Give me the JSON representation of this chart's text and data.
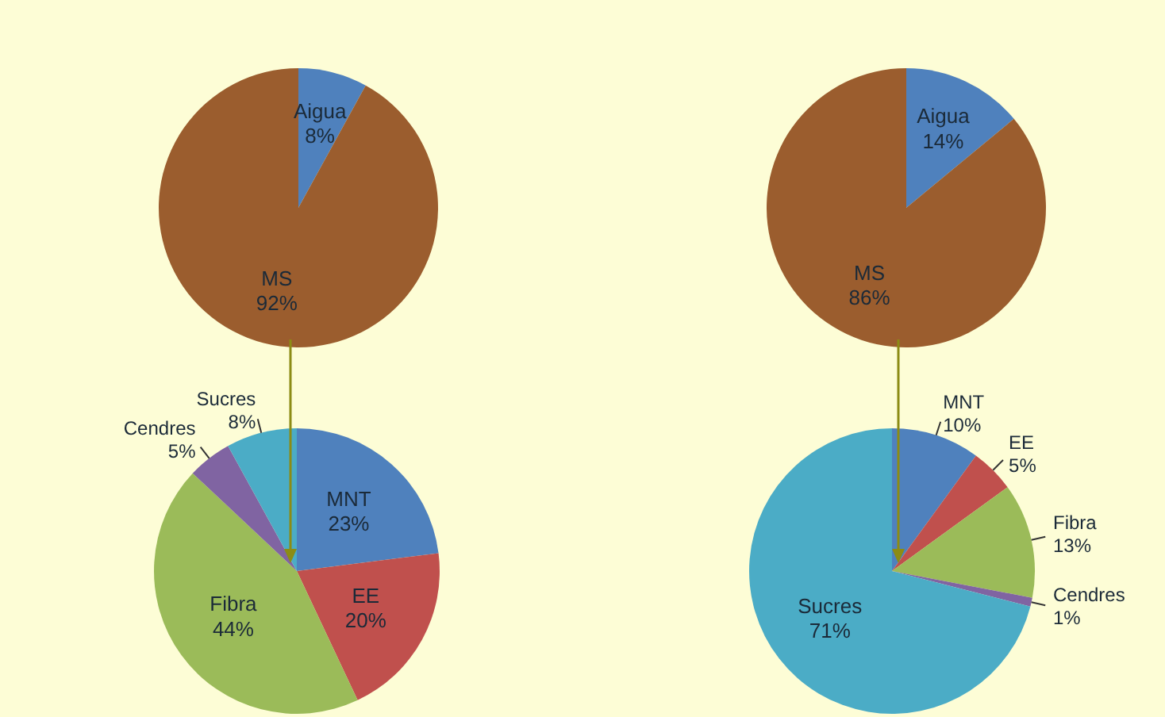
{
  "chart_data": [
    {
      "type": "pie",
      "categories": [
        "Aigua",
        "MS"
      ],
      "values": [
        8,
        92
      ],
      "value_labels": [
        "8%",
        "92%"
      ],
      "colors": [
        "#4f81bd",
        "#9b5d2e"
      ]
    },
    {
      "type": "pie",
      "categories": [
        "MNT",
        "EE",
        "Fibra",
        "Cendres",
        "Sucres"
      ],
      "values": [
        23,
        20,
        44,
        5,
        8
      ],
      "value_labels": [
        "23%",
        "20%",
        "44%",
        "5%",
        "8%"
      ],
      "colors": [
        "#4f81bd",
        "#c0504d",
        "#9bbb59",
        "#8064a2",
        "#4bacc6"
      ]
    },
    {
      "type": "pie",
      "categories": [
        "Aigua",
        "MS"
      ],
      "values": [
        14,
        86
      ],
      "value_labels": [
        "14%",
        "86%"
      ],
      "colors": [
        "#4f81bd",
        "#9b5d2e"
      ]
    },
    {
      "type": "pie",
      "categories": [
        "MNT",
        "EE",
        "Fibra",
        "Cendres",
        "Sucres"
      ],
      "values": [
        10,
        5,
        13,
        1,
        71
      ],
      "value_labels": [
        "10%",
        "5%",
        "13%",
        "1%",
        "71%"
      ],
      "colors": [
        "#4f81bd",
        "#c0504d",
        "#9bbb59",
        "#8064a2",
        "#4bacc6"
      ]
    }
  ]
}
